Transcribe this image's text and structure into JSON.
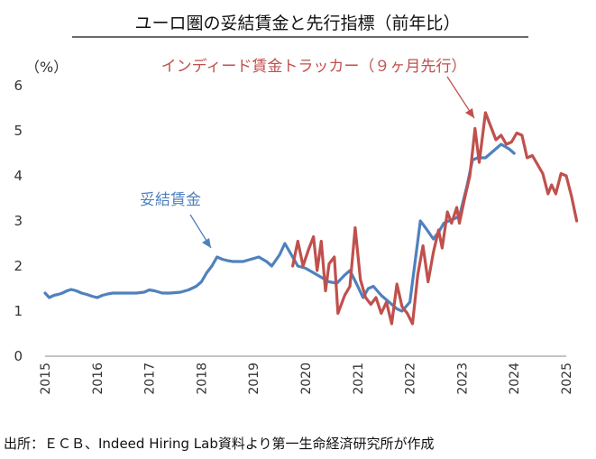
{
  "chart_data": {
    "type": "line",
    "title": "ユーロ圏の妥結賃金と先行指標（前年比）",
    "y_unit": "（%）",
    "ylim": [
      0,
      6
    ],
    "y_ticks": [
      "0",
      "1",
      "2",
      "3",
      "4",
      "5",
      "6"
    ],
    "xlim": [
      2015,
      2025
    ],
    "x_ticks": [
      "2015",
      "2016",
      "2017",
      "2018",
      "2019",
      "2020",
      "2021",
      "2022",
      "2023",
      "2024",
      "2025"
    ],
    "grid": false,
    "source": "出所：ＥＣＢ、Indeed Hiring Lab資料より第一生命経済研究所が作成",
    "series": [
      {
        "name": "妥結賃金",
        "color": "#4F81BD",
        "points": [
          [
            2015.0,
            1.4
          ],
          [
            2015.08,
            1.3
          ],
          [
            2015.17,
            1.35
          ],
          [
            2015.25,
            1.37
          ],
          [
            2015.33,
            1.4
          ],
          [
            2015.42,
            1.45
          ],
          [
            2015.5,
            1.48
          ],
          [
            2015.6,
            1.45
          ],
          [
            2015.7,
            1.4
          ],
          [
            2015.8,
            1.37
          ],
          [
            2015.9,
            1.33
          ],
          [
            2016.0,
            1.3
          ],
          [
            2016.1,
            1.35
          ],
          [
            2016.2,
            1.38
          ],
          [
            2016.3,
            1.4
          ],
          [
            2016.5,
            1.4
          ],
          [
            2016.75,
            1.4
          ],
          [
            2016.9,
            1.42
          ],
          [
            2017.0,
            1.47
          ],
          [
            2017.1,
            1.45
          ],
          [
            2017.25,
            1.4
          ],
          [
            2017.4,
            1.4
          ],
          [
            2017.6,
            1.42
          ],
          [
            2017.75,
            1.47
          ],
          [
            2017.9,
            1.55
          ],
          [
            2018.0,
            1.65
          ],
          [
            2018.1,
            1.85
          ],
          [
            2018.2,
            2.0
          ],
          [
            2018.3,
            2.2
          ],
          [
            2018.4,
            2.15
          ],
          [
            2018.5,
            2.12
          ],
          [
            2018.6,
            2.1
          ],
          [
            2018.8,
            2.1
          ],
          [
            2018.95,
            2.15
          ],
          [
            2019.1,
            2.2
          ],
          [
            2019.25,
            2.1
          ],
          [
            2019.35,
            2.0
          ],
          [
            2019.5,
            2.25
          ],
          [
            2019.6,
            2.5
          ],
          [
            2019.7,
            2.3
          ],
          [
            2019.85,
            2.0
          ],
          [
            2020.0,
            1.95
          ],
          [
            2020.15,
            1.85
          ],
          [
            2020.3,
            1.75
          ],
          [
            2020.45,
            1.65
          ],
          [
            2020.6,
            1.62
          ],
          [
            2020.75,
            1.8
          ],
          [
            2020.85,
            1.9
          ],
          [
            2021.0,
            1.55
          ],
          [
            2021.1,
            1.3
          ],
          [
            2021.2,
            1.5
          ],
          [
            2021.3,
            1.55
          ],
          [
            2021.45,
            1.35
          ],
          [
            2021.6,
            1.2
          ],
          [
            2021.75,
            1.05
          ],
          [
            2021.85,
            1.0
          ],
          [
            2022.0,
            1.2
          ],
          [
            2022.1,
            2.1
          ],
          [
            2022.2,
            3.0
          ],
          [
            2022.3,
            2.85
          ],
          [
            2022.45,
            2.6
          ],
          [
            2022.55,
            2.75
          ],
          [
            2022.65,
            2.95
          ],
          [
            2022.75,
            3.0
          ],
          [
            2022.85,
            3.05
          ],
          [
            2022.95,
            3.1
          ],
          [
            2023.1,
            3.8
          ],
          [
            2023.2,
            4.35
          ],
          [
            2023.3,
            4.4
          ],
          [
            2023.45,
            4.4
          ],
          [
            2023.6,
            4.55
          ],
          [
            2023.75,
            4.7
          ],
          [
            2023.9,
            4.6
          ],
          [
            2024.0,
            4.5
          ]
        ]
      },
      {
        "name": "インディード賃金トラッカー（９ヶ月先行）",
        "color": "#C0504D",
        "points": [
          [
            2019.75,
            2.0
          ],
          [
            2019.85,
            2.55
          ],
          [
            2019.95,
            2.0
          ],
          [
            2020.05,
            2.35
          ],
          [
            2020.15,
            2.65
          ],
          [
            2020.22,
            1.9
          ],
          [
            2020.3,
            2.55
          ],
          [
            2020.38,
            1.45
          ],
          [
            2020.45,
            2.05
          ],
          [
            2020.55,
            2.2
          ],
          [
            2020.62,
            0.95
          ],
          [
            2020.75,
            1.35
          ],
          [
            2020.85,
            1.55
          ],
          [
            2020.95,
            2.85
          ],
          [
            2021.05,
            1.7
          ],
          [
            2021.15,
            1.3
          ],
          [
            2021.25,
            1.15
          ],
          [
            2021.35,
            1.3
          ],
          [
            2021.45,
            0.95
          ],
          [
            2021.55,
            1.2
          ],
          [
            2021.65,
            0.72
          ],
          [
            2021.75,
            1.6
          ],
          [
            2021.85,
            1.1
          ],
          [
            2021.95,
            0.95
          ],
          [
            2022.05,
            0.72
          ],
          [
            2022.15,
            1.8
          ],
          [
            2022.25,
            2.45
          ],
          [
            2022.35,
            1.65
          ],
          [
            2022.45,
            2.3
          ],
          [
            2022.55,
            2.8
          ],
          [
            2022.62,
            2.4
          ],
          [
            2022.72,
            3.2
          ],
          [
            2022.8,
            2.95
          ],
          [
            2022.9,
            3.3
          ],
          [
            2022.95,
            2.95
          ],
          [
            2023.05,
            3.5
          ],
          [
            2023.15,
            4.0
          ],
          [
            2023.25,
            5.05
          ],
          [
            2023.33,
            4.3
          ],
          [
            2023.45,
            5.4
          ],
          [
            2023.55,
            5.1
          ],
          [
            2023.65,
            4.8
          ],
          [
            2023.75,
            4.9
          ],
          [
            2023.85,
            4.7
          ],
          [
            2023.95,
            4.75
          ],
          [
            2024.05,
            4.95
          ],
          [
            2024.15,
            4.9
          ],
          [
            2024.25,
            4.4
          ],
          [
            2024.35,
            4.45
          ],
          [
            2024.45,
            4.25
          ],
          [
            2024.55,
            4.05
          ],
          [
            2024.65,
            3.6
          ],
          [
            2024.72,
            3.8
          ],
          [
            2024.8,
            3.6
          ],
          [
            2024.9,
            4.05
          ],
          [
            2025.0,
            4.0
          ],
          [
            2025.1,
            3.55
          ],
          [
            2025.2,
            3.0
          ]
        ]
      }
    ]
  }
}
